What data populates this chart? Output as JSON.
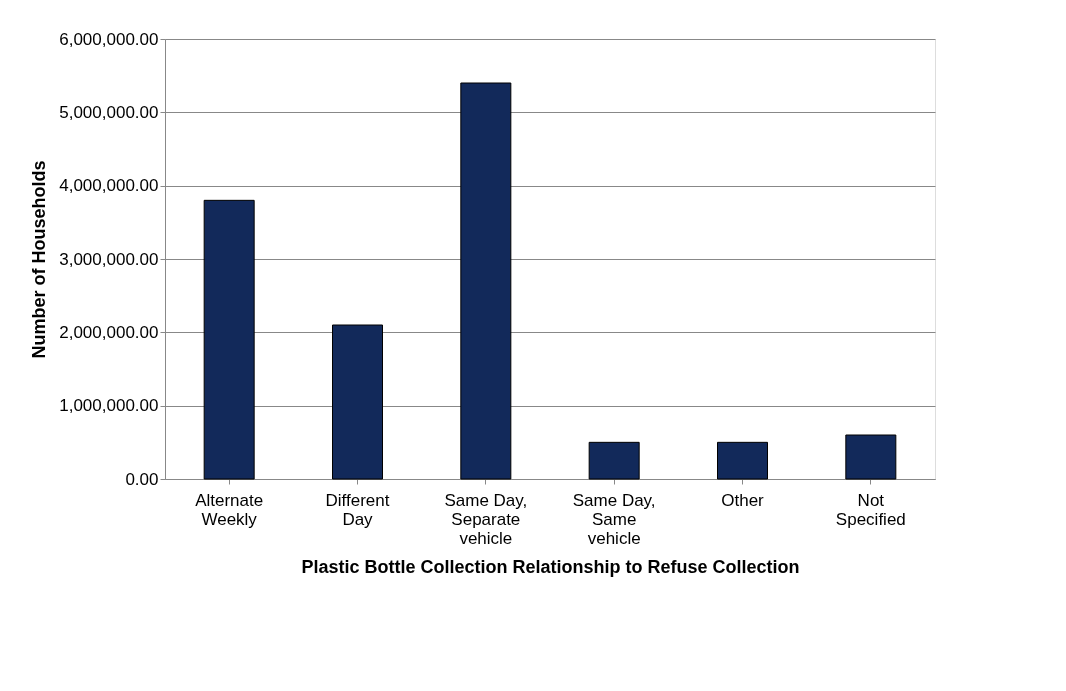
{
  "chart_data": {
    "type": "bar",
    "xlabel": "Plastic Bottle Collection Relationship to Refuse Collection",
    "ylabel": "Number of Households",
    "categories": [
      "Alternate\nWeekly",
      "Different\nDay",
      "Same Day,\nSeparate\nvehicle",
      "Same Day,\nSame\nvehicle",
      "Other",
      "Not\nSpecified"
    ],
    "values": [
      3800000,
      2100000,
      5400000,
      500000,
      500000,
      600000
    ],
    "color": "#12295a",
    "ylim": [
      0,
      6000000
    ],
    "yticks": [
      {
        "value": 0,
        "label": "0.00"
      },
      {
        "value": 1000000,
        "label": "1,000,000.00"
      },
      {
        "value": 2000000,
        "label": "2,000,000.00"
      },
      {
        "value": 3000000,
        "label": "3,000,000.00"
      },
      {
        "value": 4000000,
        "label": "4,000,000.00"
      },
      {
        "value": 5000000,
        "label": "5,000,000.00"
      },
      {
        "value": 6000000,
        "label": "6,000,000.00"
      }
    ],
    "grid": "y"
  }
}
